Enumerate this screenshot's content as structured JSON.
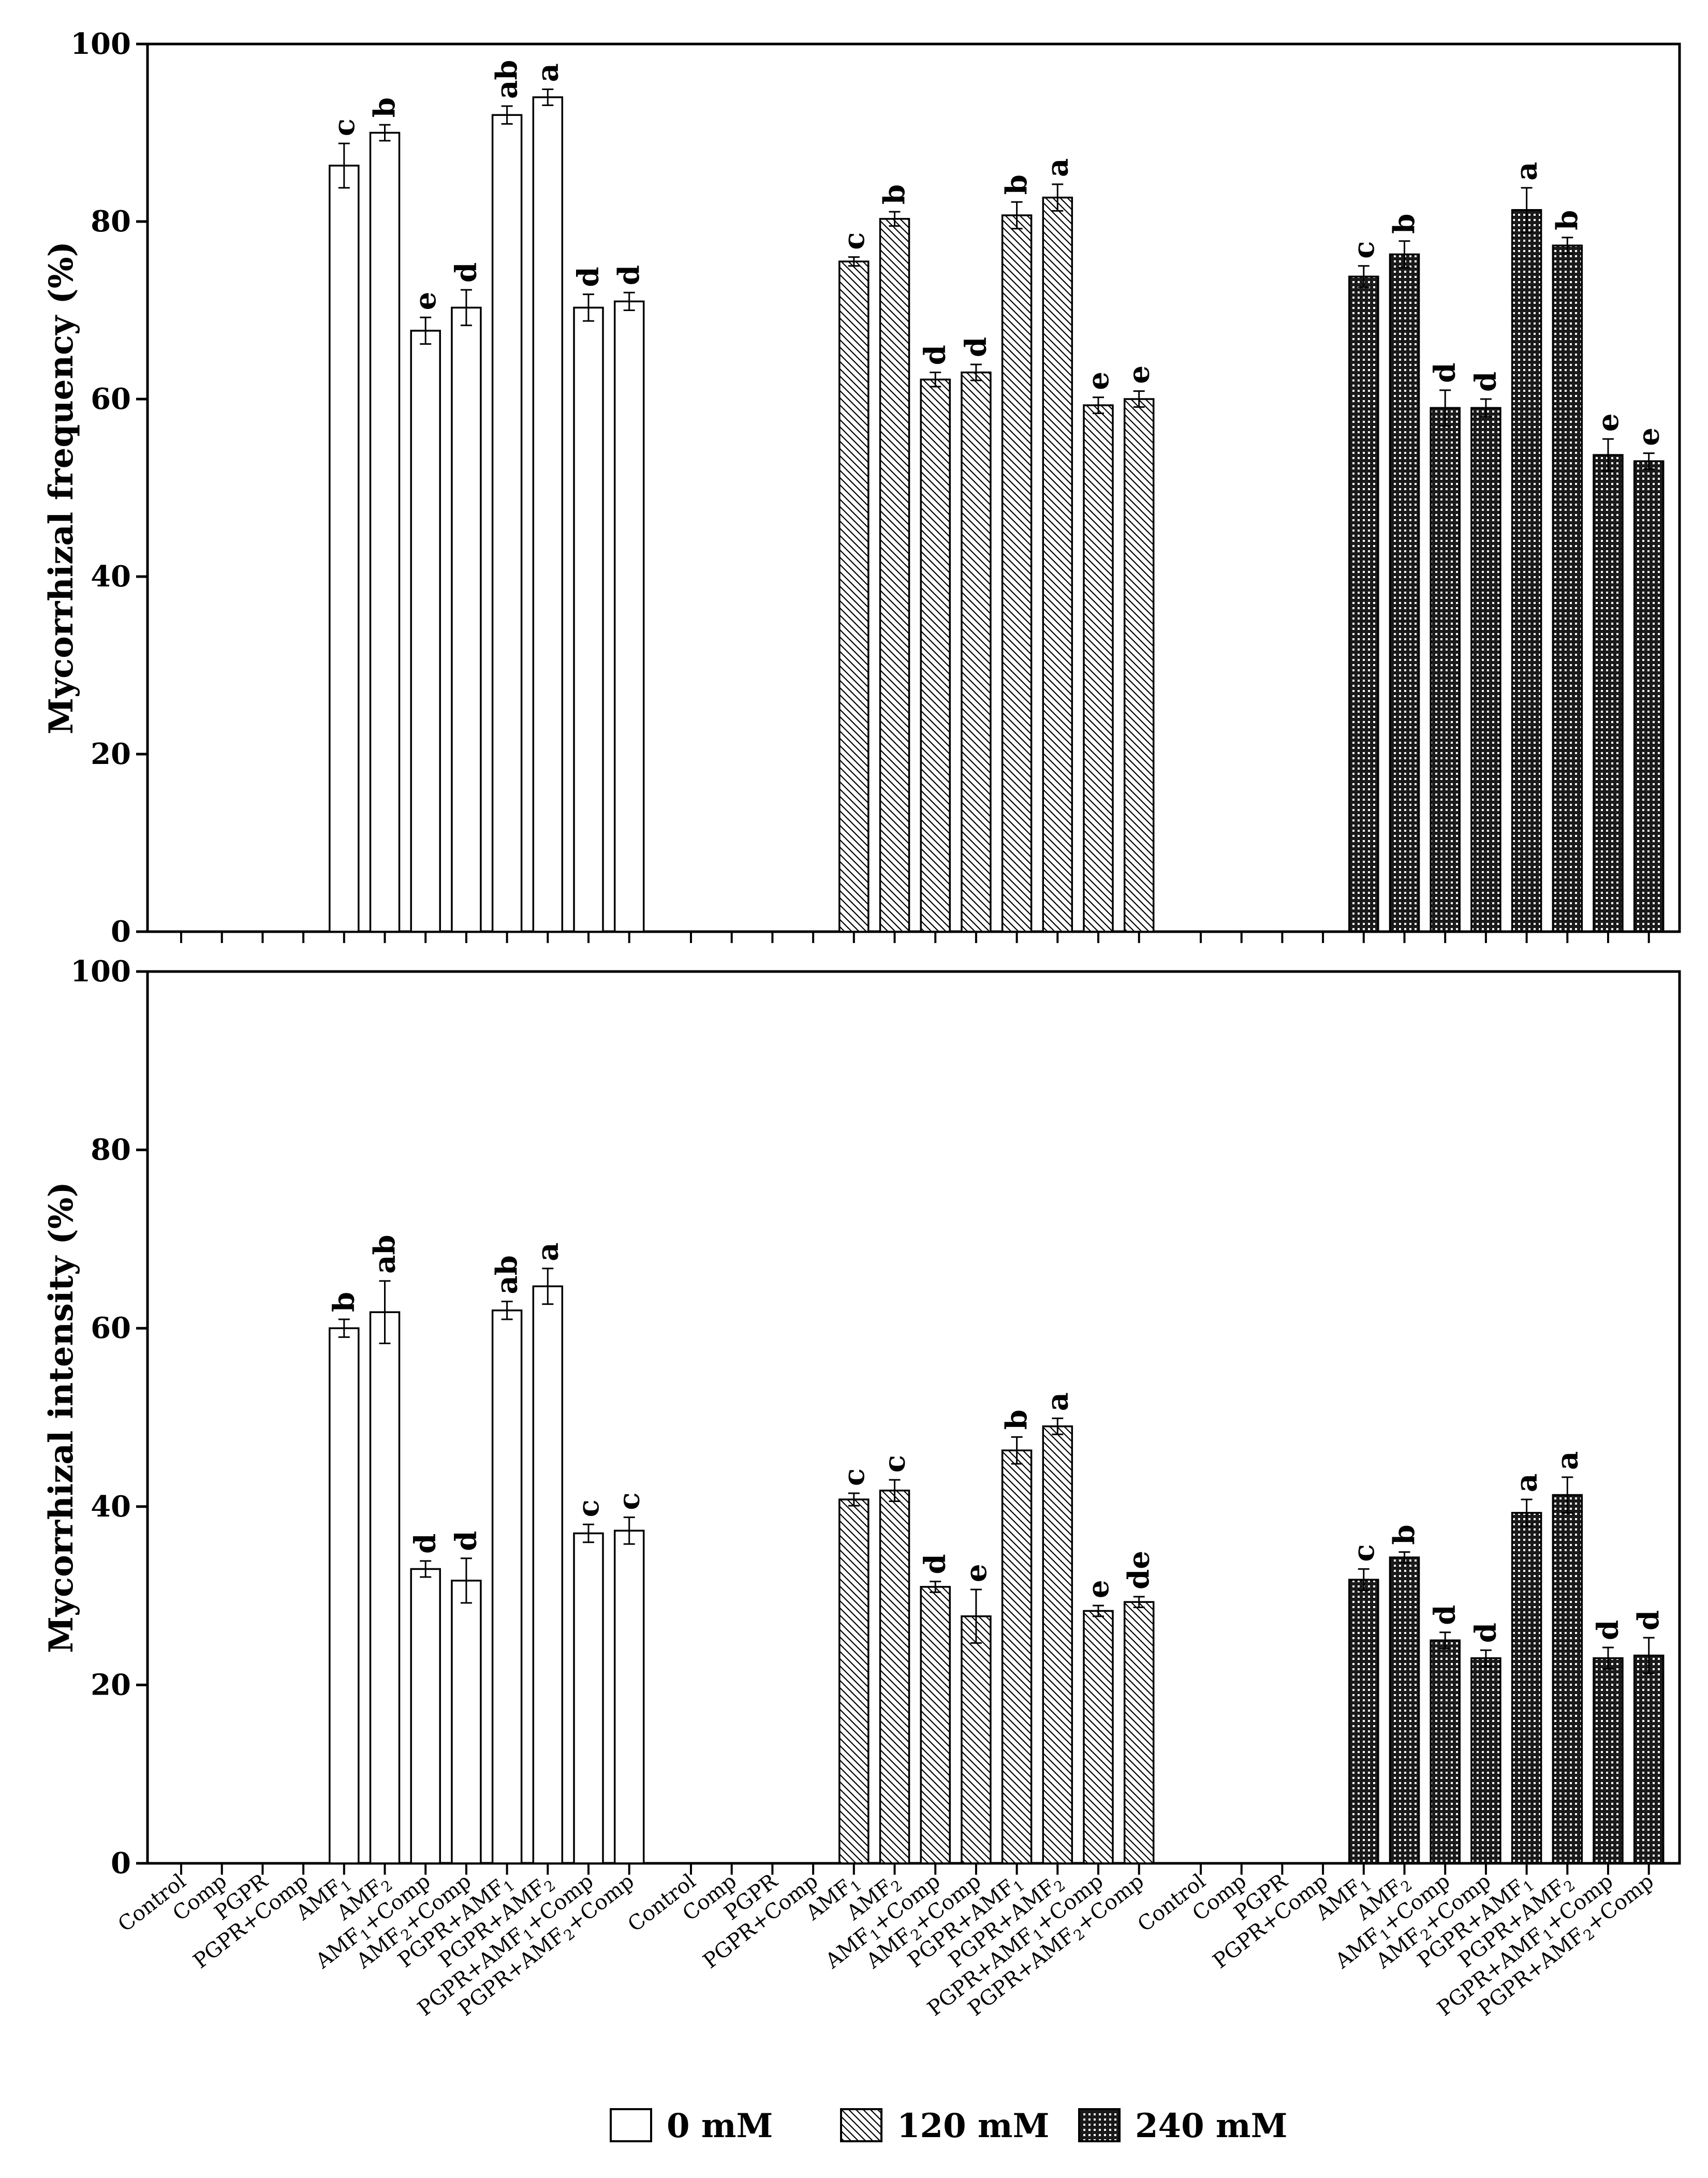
{
  "chart_data": {
    "type": "bar",
    "panels": [
      {
        "id": "frequency",
        "ylabel": "Mycorrhizal frequency (%)",
        "ylim": [
          0,
          100
        ],
        "yticks": [
          0,
          20,
          40,
          60,
          80,
          100
        ]
      },
      {
        "id": "intensity",
        "ylabel": "Mycorrhizal intensity (%)",
        "ylim": [
          0,
          100
        ],
        "yticks": [
          0,
          20,
          40,
          60,
          80,
          100
        ]
      }
    ],
    "categories": [
      "Control",
      "Comp",
      "PGPR",
      "PGPR+Comp",
      "AMF1",
      "AMF2",
      "AMF1+Comp",
      "AMF2+Comp",
      "PGPR+AMF1",
      "PGPR+AMF2",
      "PGPR+AMF1+Comp",
      "PGPR+AMF2+Comp"
    ],
    "category_display": [
      {
        "base": "Control",
        "sub": "",
        "rest": ""
      },
      {
        "base": "Comp",
        "sub": "",
        "rest": ""
      },
      {
        "base": "PGPR",
        "sub": "",
        "rest": ""
      },
      {
        "base": "PGPR+Comp",
        "sub": "",
        "rest": ""
      },
      {
        "base": "AMF",
        "sub": "1",
        "rest": ""
      },
      {
        "base": "AMF",
        "sub": "2",
        "rest": ""
      },
      {
        "base": "AMF",
        "sub": "1",
        "rest": "+Comp"
      },
      {
        "base": "AMF",
        "sub": "2",
        "rest": "+Comp"
      },
      {
        "base": "PGPR+AMF",
        "sub": "1",
        "rest": ""
      },
      {
        "base": "PGPR+AMF",
        "sub": "2",
        "rest": ""
      },
      {
        "base": "PGPR+AMF",
        "sub": "1",
        "rest": "+Comp"
      },
      {
        "base": "PGPR+AMF",
        "sub": "2",
        "rest": "+Comp"
      }
    ],
    "series": [
      {
        "name": "0 mM",
        "pattern": "open",
        "frequency": [
          0,
          0,
          0,
          0,
          86.3,
          90.0,
          67.7,
          70.3,
          92.0,
          94.0,
          70.3,
          71.0
        ],
        "freq_err": [
          0,
          0,
          0,
          0,
          2.5,
          0.9,
          1.5,
          2.0,
          1.0,
          0.9,
          1.5,
          1.0
        ],
        "freq_sig": [
          "",
          "",
          "",
          "",
          "c",
          "b",
          "e",
          "d",
          "ab",
          "a",
          "d",
          "d"
        ],
        "intensity": [
          0,
          0,
          0,
          0,
          60.0,
          61.8,
          33.0,
          31.7,
          62.0,
          64.7,
          37.0,
          37.3
        ],
        "int_err": [
          0,
          0,
          0,
          0,
          1.0,
          3.5,
          0.9,
          2.5,
          1.0,
          2.0,
          1.0,
          1.5
        ],
        "int_sig": [
          "",
          "",
          "",
          "",
          "b",
          "ab",
          "d",
          "d",
          "ab",
          "a",
          "c",
          "c"
        ]
      },
      {
        "name": "120 mM",
        "pattern": "hatch",
        "frequency": [
          0,
          0,
          0,
          0,
          75.5,
          80.3,
          62.2,
          63.0,
          80.7,
          82.7,
          59.3,
          60.0
        ],
        "freq_err": [
          0,
          0,
          0,
          0,
          0.5,
          0.8,
          0.8,
          0.9,
          1.5,
          1.5,
          0.9,
          0.9
        ],
        "freq_sig": [
          "",
          "",
          "",
          "",
          "c",
          "b",
          "d",
          "d",
          "b",
          "a",
          "e",
          "e"
        ],
        "intensity": [
          0,
          0,
          0,
          0,
          40.8,
          41.8,
          31.0,
          27.7,
          46.3,
          49.0,
          28.3,
          29.3
        ],
        "int_err": [
          0,
          0,
          0,
          0,
          0.7,
          1.2,
          0.6,
          3.0,
          1.5,
          0.9,
          0.6,
          0.6
        ],
        "int_sig": [
          "",
          "",
          "",
          "",
          "c",
          "c",
          "d",
          "e",
          "b",
          "a",
          "e",
          "de"
        ]
      },
      {
        "name": "240 mM",
        "pattern": "grid",
        "frequency": [
          0,
          0,
          0,
          0,
          73.8,
          76.3,
          59.0,
          59.0,
          81.3,
          77.3,
          53.7,
          53.0
        ],
        "freq_err": [
          0,
          0,
          0,
          0,
          1.2,
          1.5,
          2.0,
          1.0,
          2.5,
          0.9,
          1.8,
          0.9
        ],
        "freq_sig": [
          "",
          "",
          "",
          "",
          "c",
          "b",
          "d",
          "d",
          "a",
          "b",
          "e",
          "e"
        ],
        "intensity": [
          0,
          0,
          0,
          0,
          31.8,
          34.3,
          25.0,
          23.0,
          39.3,
          41.3,
          23.0,
          23.3
        ],
        "int_err": [
          0,
          0,
          0,
          0,
          1.2,
          0.6,
          0.9,
          0.9,
          1.5,
          2.0,
          1.2,
          2.0
        ],
        "int_sig": [
          "",
          "",
          "",
          "",
          "c",
          "b",
          "d",
          "d",
          "a",
          "a",
          "d",
          "d"
        ]
      }
    ],
    "legend": {
      "position": "bottom-center",
      "entries": [
        "0 mM",
        "120 mM",
        "240 mM"
      ]
    }
  }
}
